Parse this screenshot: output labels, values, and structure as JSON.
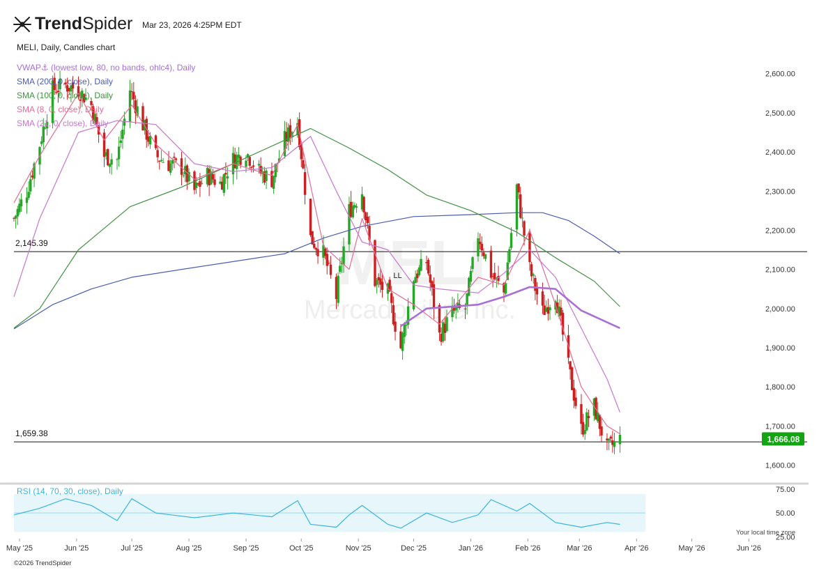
{
  "header": {
    "brand_bold": "Trend",
    "brand_light": "Spider",
    "timestamp": "Mar 23, 2026 4:25PM EDT",
    "ticker_line": "MELI, Daily, Candles chart",
    "copyright": "©2026 TrendSpider",
    "timezone_note": "Your local time zone"
  },
  "watermark": {
    "symbol": "MELI",
    "name": "MercadoLibre Inc."
  },
  "indicators": [
    {
      "label": "VWAP⚓ (lowest low, 80, no bands, ohlc4), Daily",
      "color": "#a86fd6"
    },
    {
      "label": "SMA (200, 0, close), Daily",
      "color": "#4a5cb0"
    },
    {
      "label": "SMA (100, 0, close), Daily",
      "color": "#3f9140"
    },
    {
      "label": "SMA (8, 0, close), Daily",
      "color": "#e46b94"
    },
    {
      "label": "SMA (21, 0, close), Daily",
      "color": "#c775cf"
    }
  ],
  "chart_data": [
    {
      "type": "candlestick",
      "symbol": "MELI",
      "timeframe": "Daily",
      "ylim": [
        1560,
        2660
      ],
      "y_ticks": [
        1600,
        1700,
        1800,
        1900,
        2000,
        2100,
        2200,
        2300,
        2400,
        2500,
        2600
      ],
      "y_tick_labels": [
        "1,600.00",
        "1,700.00",
        "1,800.00",
        "1,900.00",
        "2,000.00",
        "2,100.00",
        "2,200.00",
        "2,300.00",
        "2,400.00",
        "2,500.00",
        "2,600.00"
      ],
      "x_range": [
        "2025-04-28",
        "2026-06-05"
      ],
      "x_ticks": [
        "2025-05-01",
        "2025-06-01",
        "2025-07-01",
        "2025-08-01",
        "2025-09-01",
        "2025-10-01",
        "2025-11-01",
        "2025-12-01",
        "2026-01-01",
        "2026-02-01",
        "2026-03-01",
        "2026-04-01",
        "2026-05-01",
        "2026-06-01"
      ],
      "x_tick_labels": [
        "May '25",
        "Jun '25",
        "Jul '25",
        "Aug '25",
        "Sep '25",
        "Oct '25",
        "Nov '25",
        "Dec '25",
        "Jan '26",
        "Feb '26",
        "Mar '26",
        "Apr '26",
        "May '26",
        "Jun '26"
      ],
      "up_color": "#26a626",
      "down_color": "#cc1f1f",
      "close_path": [
        [
          "2025-04-28",
          2230
        ],
        [
          "2025-05-05",
          2300
        ],
        [
          "2025-05-12",
          2420
        ],
        [
          "2025-05-19",
          2560
        ],
        [
          "2025-05-26",
          2570
        ],
        [
          "2025-06-02",
          2560
        ],
        [
          "2025-06-09",
          2520
        ],
        [
          "2025-06-16",
          2390
        ],
        [
          "2025-06-23",
          2380
        ],
        [
          "2025-06-30",
          2560
        ],
        [
          "2025-07-07",
          2470
        ],
        [
          "2025-07-14",
          2390
        ],
        [
          "2025-07-21",
          2370
        ],
        [
          "2025-07-28",
          2360
        ],
        [
          "2025-08-04",
          2300
        ],
        [
          "2025-08-11",
          2340
        ],
        [
          "2025-08-18",
          2320
        ],
        [
          "2025-08-25",
          2380
        ],
        [
          "2025-09-01",
          2400
        ],
        [
          "2025-09-08",
          2350
        ],
        [
          "2025-09-15",
          2330
        ],
        [
          "2025-09-22",
          2430
        ],
        [
          "2025-09-29",
          2480
        ],
        [
          "2025-10-06",
          2180
        ],
        [
          "2025-10-13",
          2140
        ],
        [
          "2025-10-20",
          2030
        ],
        [
          "2025-10-27",
          2250
        ],
        [
          "2025-11-03",
          2300
        ],
        [
          "2025-11-10",
          2070
        ],
        [
          "2025-11-17",
          2040
        ],
        [
          "2025-11-24",
          1900
        ],
        [
          "2025-12-01",
          2080
        ],
        [
          "2025-12-08",
          2120
        ],
        [
          "2025-12-15",
          1930
        ],
        [
          "2025-12-22",
          1990
        ],
        [
          "2025-12-29",
          2000
        ],
        [
          "2026-01-05",
          2190
        ],
        [
          "2026-01-12",
          2090
        ],
        [
          "2026-01-19",
          2040
        ],
        [
          "2026-01-26",
          2310
        ],
        [
          "2026-02-02",
          2100
        ],
        [
          "2026-02-09",
          1990
        ],
        [
          "2026-02-16",
          2040
        ],
        [
          "2026-02-23",
          1850
        ],
        [
          "2026-03-02",
          1690
        ],
        [
          "2026-03-09",
          1750
        ],
        [
          "2026-03-16",
          1640
        ],
        [
          "2026-03-23",
          1666.08
        ]
      ],
      "horizontal_levels": [
        {
          "value": 2145.39,
          "label": "2,145.39"
        },
        {
          "value": 1659.38,
          "label": "1,659.38"
        }
      ],
      "last_price": {
        "value": 1666.08,
        "label": "1,666.08",
        "color": "#13a313"
      },
      "annotation": {
        "date": "2025-11-20",
        "value": 2085,
        "label": "LL"
      },
      "series": [
        {
          "name": "SMA (200, 0, close), Daily",
          "color": "#4a5cb0",
          "points": [
            [
              "2025-04-28",
              1948
            ],
            [
              "2025-05-19",
              2010
            ],
            [
              "2025-06-09",
              2050
            ],
            [
              "2025-07-01",
              2080
            ],
            [
              "2025-07-28",
              2100
            ],
            [
              "2025-08-25",
              2120
            ],
            [
              "2025-09-22",
              2140
            ],
            [
              "2025-10-13",
              2180
            ],
            [
              "2025-11-03",
              2210
            ],
            [
              "2025-12-01",
              2235
            ],
            [
              "2026-01-01",
              2240
            ],
            [
              "2026-01-26",
              2245
            ],
            [
              "2026-02-09",
              2245
            ],
            [
              "2026-02-23",
              2225
            ],
            [
              "2026-03-09",
              2185
            ],
            [
              "2026-03-23",
              2140
            ]
          ]
        },
        {
          "name": "SMA (100, 0, close), Daily",
          "color": "#3f9140",
          "points": [
            [
              "2025-04-28",
              1950
            ],
            [
              "2025-05-12",
              2000
            ],
            [
              "2025-06-02",
              2150
            ],
            [
              "2025-06-30",
              2260
            ],
            [
              "2025-07-28",
              2310
            ],
            [
              "2025-08-25",
              2370
            ],
            [
              "2025-09-22",
              2430
            ],
            [
              "2025-10-06",
              2460
            ],
            [
              "2025-10-27",
              2410
            ],
            [
              "2025-11-17",
              2355
            ],
            [
              "2025-12-08",
              2290
            ],
            [
              "2026-01-01",
              2250
            ],
            [
              "2026-01-26",
              2195
            ],
            [
              "2026-02-16",
              2130
            ],
            [
              "2026-03-09",
              2070
            ],
            [
              "2026-03-23",
              2005
            ]
          ]
        },
        {
          "name": "SMA (21, 0, close), Daily",
          "color": "#c775cf",
          "points": [
            [
              "2025-04-28",
              2030
            ],
            [
              "2025-05-12",
              2230
            ],
            [
              "2025-06-02",
              2450
            ],
            [
              "2025-06-23",
              2480
            ],
            [
              "2025-07-14",
              2470
            ],
            [
              "2025-08-04",
              2370
            ],
            [
              "2025-08-25",
              2350
            ],
            [
              "2025-09-15",
              2360
            ],
            [
              "2025-10-06",
              2440
            ],
            [
              "2025-10-20",
              2300
            ],
            [
              "2025-11-03",
              2170
            ],
            [
              "2025-11-17",
              2150
            ],
            [
              "2025-12-01",
              2060
            ],
            [
              "2025-12-15",
              2050
            ],
            [
              "2026-01-05",
              2040
            ],
            [
              "2026-01-19",
              2090
            ],
            [
              "2026-02-02",
              2150
            ],
            [
              "2026-02-16",
              2080
            ],
            [
              "2026-03-02",
              1950
            ],
            [
              "2026-03-16",
              1820
            ],
            [
              "2026-03-23",
              1735
            ]
          ]
        },
        {
          "name": "SMA (8, 0, close), Daily",
          "color": "#e46b94",
          "points": [
            [
              "2025-04-28",
              2270
            ],
            [
              "2025-05-12",
              2390
            ],
            [
              "2025-06-02",
              2550
            ],
            [
              "2025-06-16",
              2430
            ],
            [
              "2025-07-01",
              2520
            ],
            [
              "2025-07-14",
              2420
            ],
            [
              "2025-08-04",
              2330
            ],
            [
              "2025-08-25",
              2370
            ],
            [
              "2025-09-15",
              2340
            ],
            [
              "2025-09-29",
              2470
            ],
            [
              "2025-10-13",
              2160
            ],
            [
              "2025-10-27",
              2100
            ],
            [
              "2025-11-03",
              2230
            ],
            [
              "2025-11-17",
              2050
            ],
            [
              "2025-12-01",
              2010
            ],
            [
              "2025-12-15",
              1960
            ],
            [
              "2026-01-05",
              2080
            ],
            [
              "2026-01-19",
              2060
            ],
            [
              "2026-02-02",
              2200
            ],
            [
              "2026-02-16",
              2010
            ],
            [
              "2026-03-02",
              1800
            ],
            [
              "2026-03-16",
              1700
            ],
            [
              "2026-03-23",
              1680
            ]
          ]
        },
        {
          "name": "VWAP⚓ (lowest low, 80, no bands, ohlc4), Daily",
          "color": "#a86fd6",
          "bold": true,
          "points": [
            [
              "2025-11-24",
              1955
            ],
            [
              "2025-12-08",
              2000
            ],
            [
              "2026-01-05",
              2010
            ],
            [
              "2026-01-19",
              2030
            ],
            [
              "2026-02-02",
              2055
            ],
            [
              "2026-02-16",
              2050
            ],
            [
              "2026-03-02",
              1995
            ],
            [
              "2026-03-23",
              1950
            ]
          ]
        }
      ]
    },
    {
      "type": "line",
      "name": "RSI (14, 70, 30, close), Daily",
      "color": "#39b3dc",
      "ylim": [
        23,
        78
      ],
      "y_ticks": [
        25,
        50,
        75
      ],
      "y_tick_labels": [
        "25.00",
        "50.00",
        "75.00"
      ],
      "band": [
        30,
        70
      ],
      "points": [
        [
          "2025-04-28",
          48
        ],
        [
          "2025-05-12",
          55
        ],
        [
          "2025-05-26",
          65
        ],
        [
          "2025-06-09",
          58
        ],
        [
          "2025-06-23",
          42
        ],
        [
          "2025-07-01",
          65
        ],
        [
          "2025-07-14",
          50
        ],
        [
          "2025-08-04",
          45
        ],
        [
          "2025-08-25",
          50
        ],
        [
          "2025-09-15",
          46
        ],
        [
          "2025-09-29",
          63
        ],
        [
          "2025-10-06",
          38
        ],
        [
          "2025-10-20",
          35
        ],
        [
          "2025-10-27",
          48
        ],
        [
          "2025-11-03",
          58
        ],
        [
          "2025-11-17",
          38
        ],
        [
          "2025-11-24",
          34
        ],
        [
          "2025-12-08",
          50
        ],
        [
          "2025-12-22",
          40
        ],
        [
          "2026-01-05",
          48
        ],
        [
          "2026-01-12",
          64
        ],
        [
          "2026-01-26",
          52
        ],
        [
          "2026-02-02",
          60
        ],
        [
          "2026-02-16",
          40
        ],
        [
          "2026-03-02",
          35
        ],
        [
          "2026-03-16",
          40
        ],
        [
          "2026-03-23",
          38
        ]
      ]
    }
  ]
}
